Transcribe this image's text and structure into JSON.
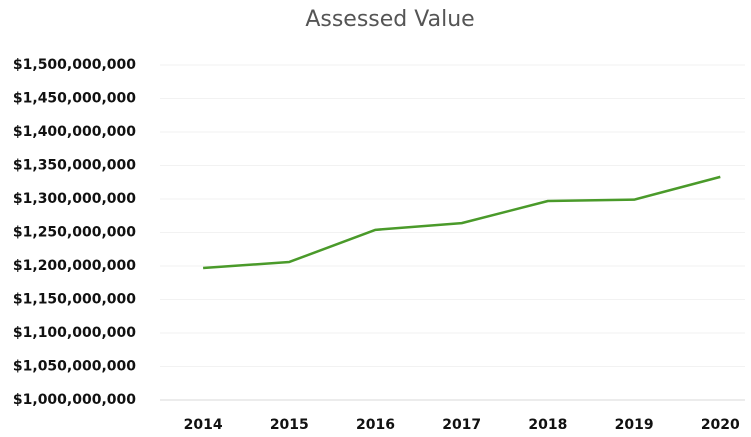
{
  "chart_data": {
    "type": "line",
    "title": "Assessed Value",
    "categories": [
      "2014",
      "2015",
      "2016",
      "2017",
      "2018",
      "2019",
      "2020"
    ],
    "series": [
      {
        "name": "Assessed Value",
        "color": "#4a9a2a",
        "values": [
          1197000000,
          1206000000,
          1254000000,
          1264000000,
          1297000000,
          1299000000,
          1333000000
        ]
      }
    ],
    "ylim": [
      1000000000,
      1500000000
    ],
    "yticks": [
      {
        "value": 1000000000,
        "label": "$1,000,000,000"
      },
      {
        "value": 1050000000,
        "label": "$1,050,000,000"
      },
      {
        "value": 1100000000,
        "label": "$1,100,000,000"
      },
      {
        "value": 1150000000,
        "label": "$1,150,000,000"
      },
      {
        "value": 1200000000,
        "label": "$1,200,000,000"
      },
      {
        "value": 1250000000,
        "label": "$1,250,000,000"
      },
      {
        "value": 1300000000,
        "label": "$1,300,000,000"
      },
      {
        "value": 1350000000,
        "label": "$1,350,000,000"
      },
      {
        "value": 1400000000,
        "label": "$1,400,000,000"
      },
      {
        "value": 1450000000,
        "label": "$1,450,000,000"
      },
      {
        "value": 1500000000,
        "label": "$1,500,000,000"
      }
    ],
    "grid": true
  }
}
